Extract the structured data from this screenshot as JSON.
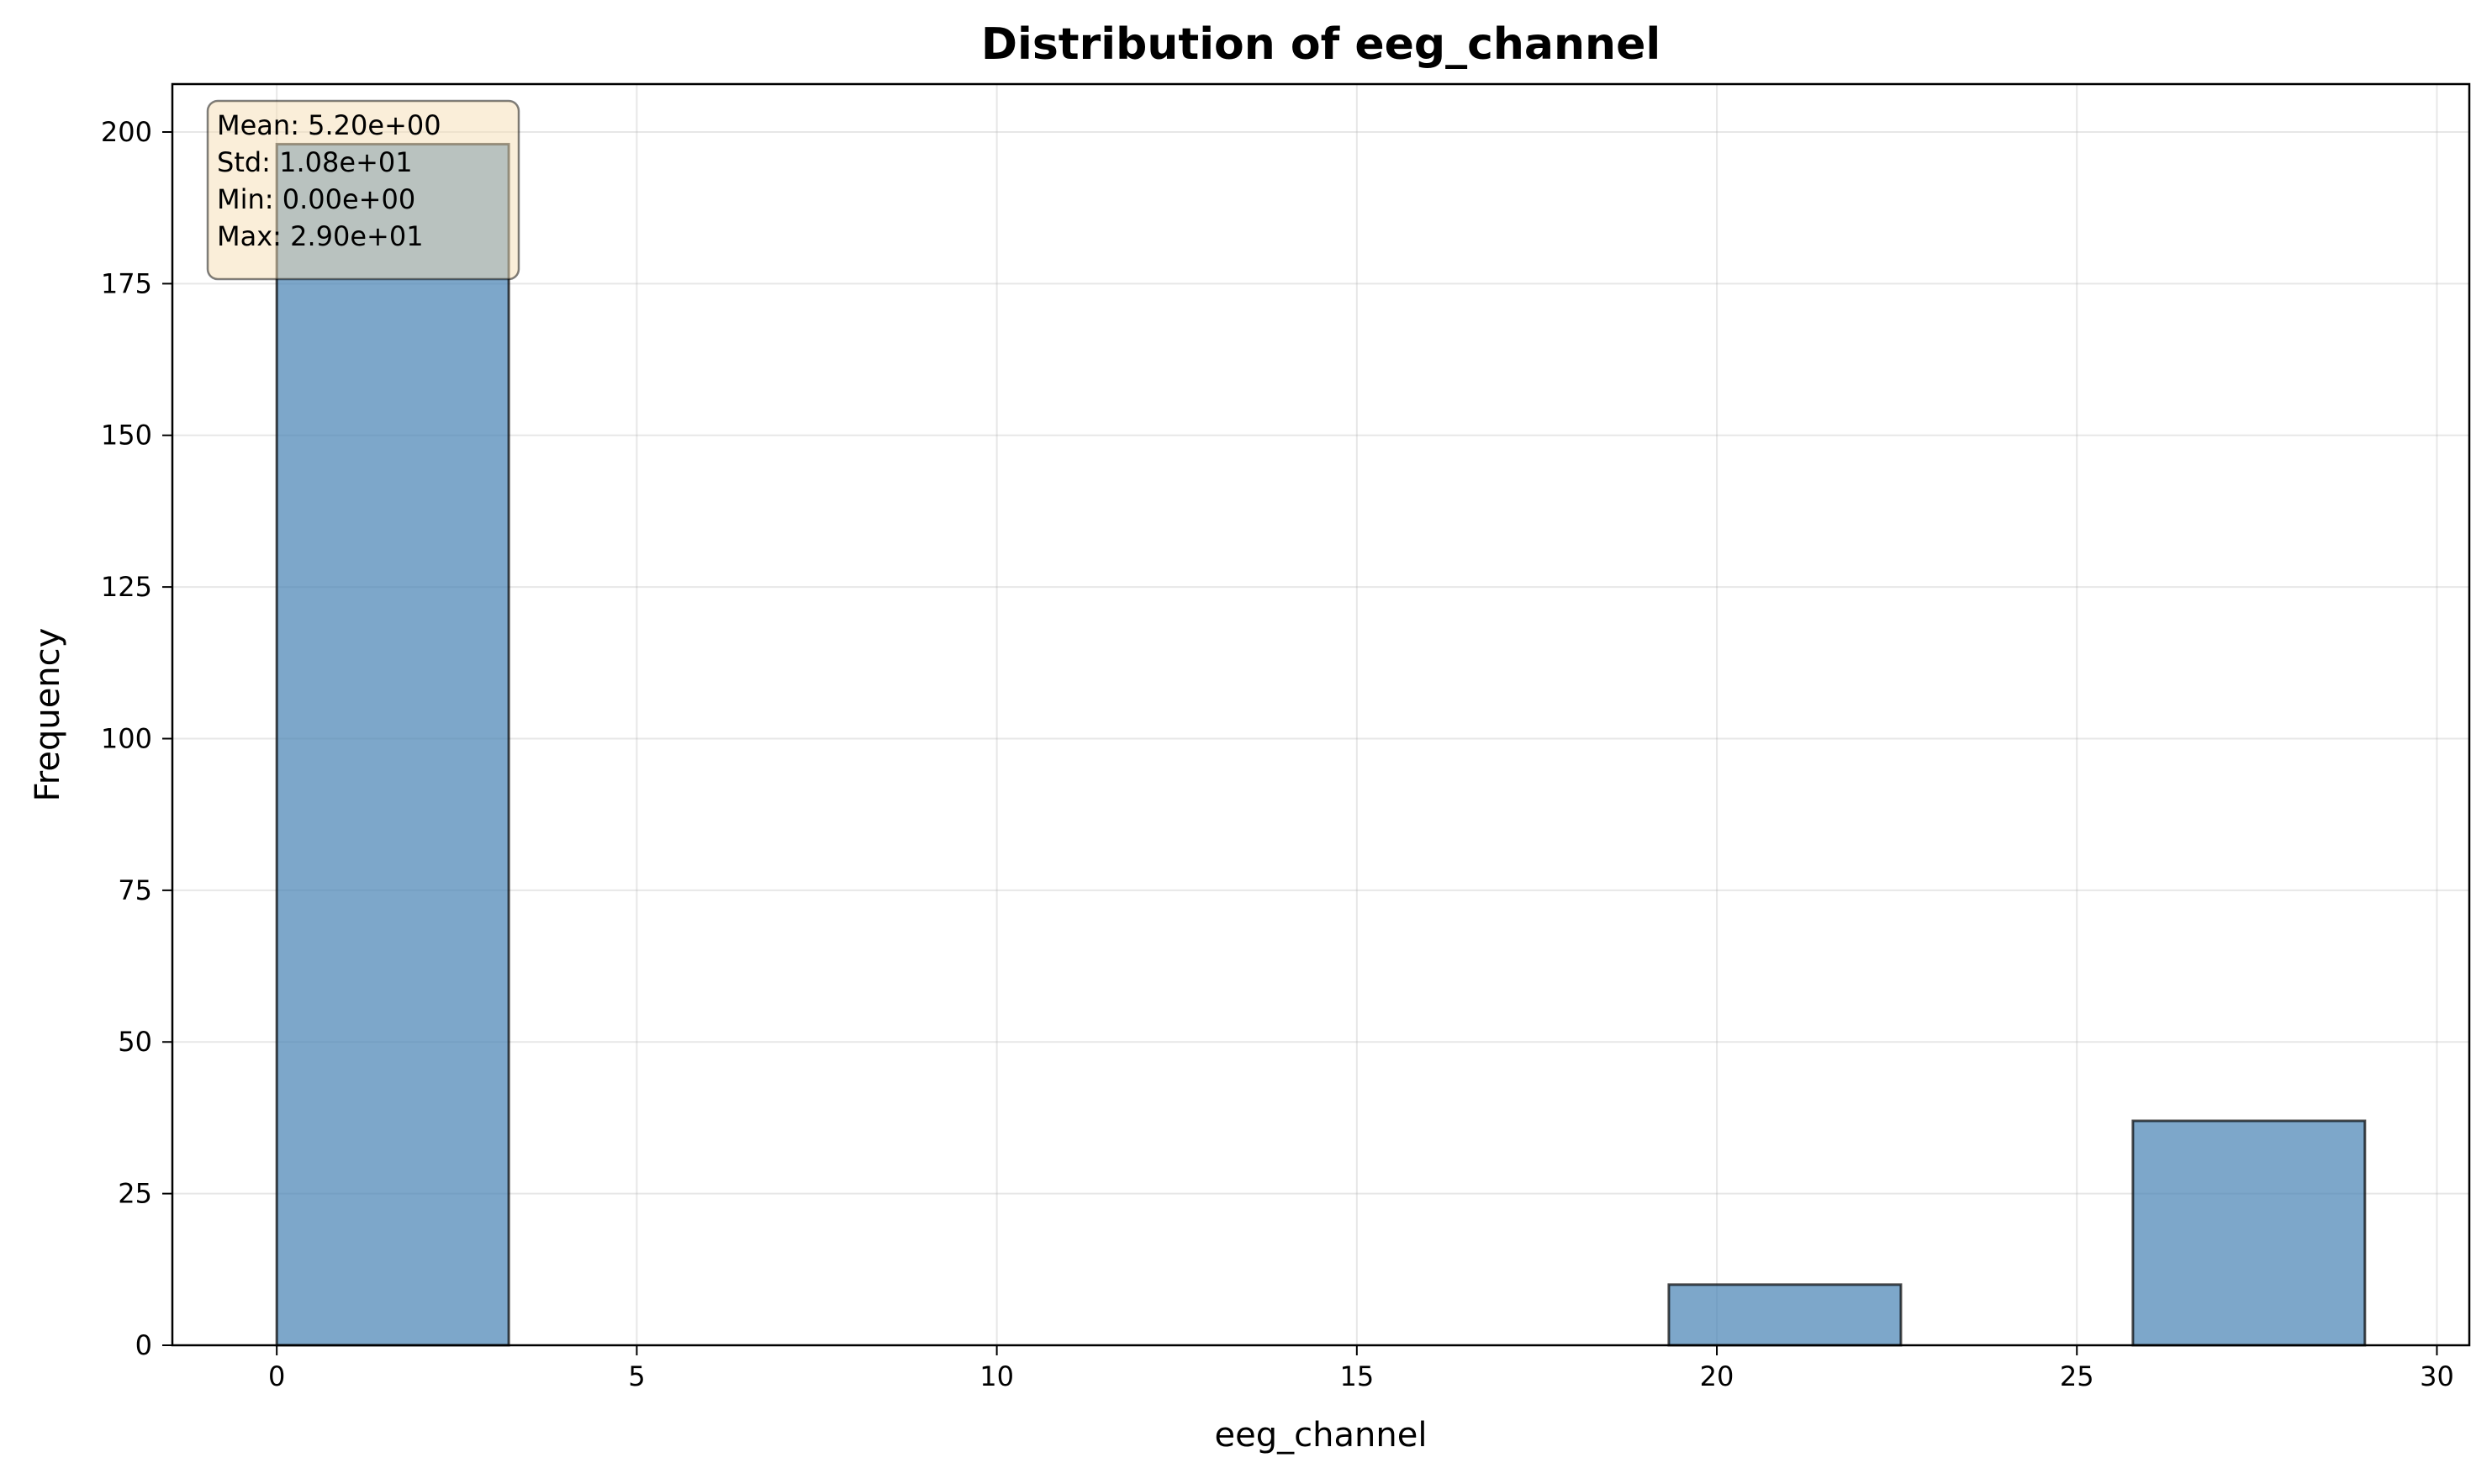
{
  "chart_data": {
    "type": "bar",
    "title": "Distribution of eeg_channel",
    "xlabel": "eeg_channel",
    "ylabel": "Frequency",
    "xlim": [
      -1.45,
      30.45
    ],
    "ylim": [
      0,
      207.9
    ],
    "xticks": [
      0,
      5,
      10,
      15,
      20,
      25,
      30
    ],
    "yticks": [
      0,
      25,
      50,
      75,
      100,
      125,
      150,
      175,
      200
    ],
    "grid": true,
    "bin_width": 3.222,
    "bins": [
      {
        "x0": 0.0,
        "x1": 3.222,
        "count": 198
      },
      {
        "x0": 3.222,
        "x1": 6.444,
        "count": 0
      },
      {
        "x0": 6.444,
        "x1": 9.667,
        "count": 0
      },
      {
        "x0": 9.667,
        "x1": 12.889,
        "count": 0
      },
      {
        "x0": 12.889,
        "x1": 16.111,
        "count": 0
      },
      {
        "x0": 16.111,
        "x1": 19.333,
        "count": 0
      },
      {
        "x0": 19.333,
        "x1": 22.556,
        "count": 10
      },
      {
        "x0": 22.556,
        "x1": 25.778,
        "count": 0
      },
      {
        "x0": 25.778,
        "x1": 29.0,
        "count": 37
      }
    ],
    "bar_color": "#4682b4",
    "stats_box": {
      "lines": [
        "Mean: 5.20e+00",
        "Std: 1.08e+01",
        "Min: 0.00e+00",
        "Max: 2.90e+01"
      ],
      "placement": "top-left",
      "background": "#f5deb3"
    }
  }
}
